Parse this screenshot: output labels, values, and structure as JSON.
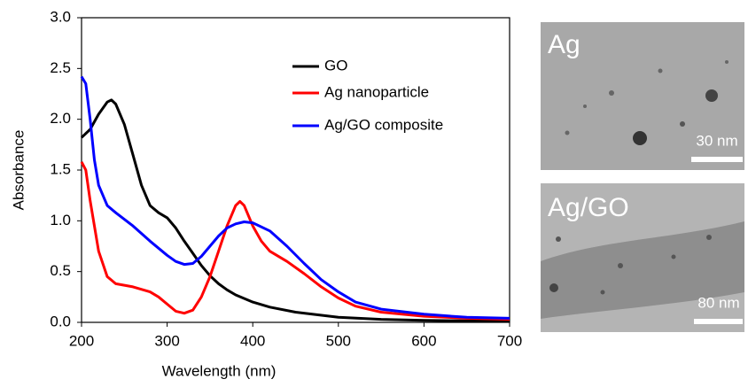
{
  "chart_data": {
    "type": "line",
    "xlabel": "Wavelength (nm)",
    "ylabel": "Absorbance",
    "xlim": [
      200,
      700
    ],
    "xticks": [
      200,
      300,
      400,
      500,
      600,
      700
    ],
    "ylim": [
      0,
      3
    ],
    "yticks": [
      {
        "value": 0,
        "label": "0.0"
      },
      {
        "value": 0.5,
        "label": "0.5"
      },
      {
        "value": 1,
        "label": "1.0"
      },
      {
        "value": 1.5,
        "label": "1.5"
      },
      {
        "value": 2,
        "label": "2.0"
      },
      {
        "value": 2.5,
        "label": "2.5"
      },
      {
        "value": 3,
        "label": "3.0"
      }
    ],
    "grid": false,
    "legend": "upper center",
    "series": [
      {
        "name": "GO",
        "color": "#000000",
        "x": [
          200,
          210,
          220,
          230,
          235,
          240,
          250,
          260,
          270,
          280,
          290,
          300,
          310,
          320,
          330,
          340,
          350,
          360,
          370,
          380,
          400,
          420,
          450,
          500,
          550,
          600,
          700
        ],
        "values": [
          1.82,
          1.9,
          2.05,
          2.17,
          2.19,
          2.15,
          1.95,
          1.65,
          1.35,
          1.15,
          1.08,
          1.03,
          0.93,
          0.8,
          0.68,
          0.56,
          0.46,
          0.38,
          0.32,
          0.27,
          0.2,
          0.15,
          0.1,
          0.05,
          0.03,
          0.02,
          0.01
        ]
      },
      {
        "name": "Ag nanoparticle",
        "color": "#ff0000",
        "x": [
          200,
          205,
          210,
          220,
          230,
          240,
          260,
          280,
          290,
          300,
          310,
          320,
          330,
          340,
          350,
          360,
          370,
          380,
          385,
          390,
          400,
          410,
          420,
          440,
          460,
          480,
          500,
          520,
          550,
          600,
          650,
          700
        ],
        "values": [
          1.58,
          1.5,
          1.2,
          0.7,
          0.45,
          0.38,
          0.35,
          0.3,
          0.25,
          0.18,
          0.11,
          0.09,
          0.12,
          0.25,
          0.45,
          0.7,
          0.95,
          1.15,
          1.19,
          1.15,
          0.95,
          0.8,
          0.7,
          0.6,
          0.48,
          0.35,
          0.24,
          0.16,
          0.1,
          0.06,
          0.04,
          0.03
        ]
      },
      {
        "name": "Ag/GO composite",
        "color": "#0000ff",
        "x": [
          200,
          205,
          210,
          215,
          220,
          230,
          240,
          260,
          280,
          300,
          310,
          320,
          330,
          340,
          350,
          360,
          370,
          380,
          390,
          400,
          420,
          440,
          460,
          480,
          500,
          520,
          550,
          600,
          650,
          700
        ],
        "values": [
          2.42,
          2.35,
          2.0,
          1.6,
          1.35,
          1.15,
          1.08,
          0.95,
          0.8,
          0.66,
          0.6,
          0.57,
          0.58,
          0.65,
          0.75,
          0.85,
          0.93,
          0.97,
          0.99,
          0.98,
          0.9,
          0.75,
          0.58,
          0.42,
          0.3,
          0.2,
          0.13,
          0.08,
          0.05,
          0.04
        ]
      }
    ]
  },
  "images": [
    {
      "label": "Ag",
      "scale": "30 nm"
    },
    {
      "label": "Ag/GO",
      "scale": "80 nm"
    }
  ]
}
